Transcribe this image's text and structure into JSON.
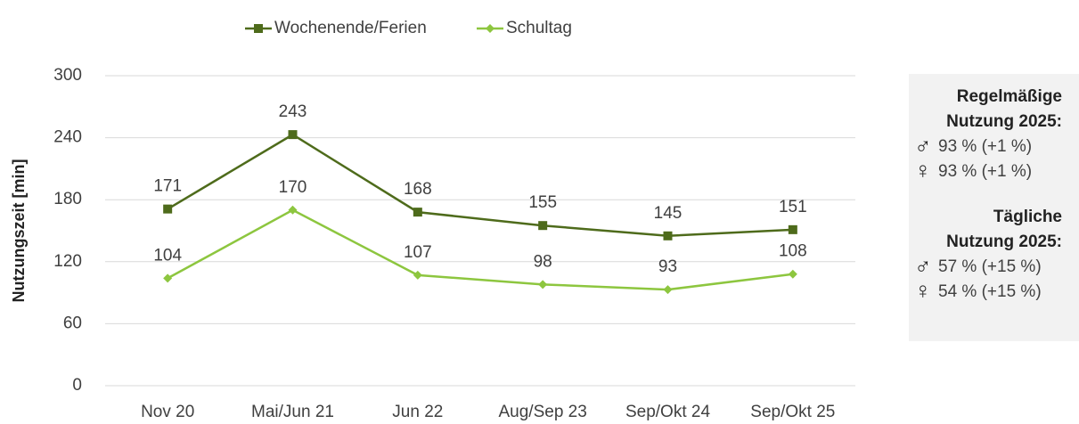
{
  "chart_data": {
    "type": "line",
    "y_label": "Nutzungszeit [min]",
    "categories": [
      "Nov 20",
      "Mai/Jun 21",
      "Jun 22",
      "Aug/Sep 23",
      "Sep/Okt 24",
      "Sep/Okt 25"
    ],
    "series": [
      {
        "name": "Wochenende/Ferien",
        "color": "#4e6b1b",
        "marker": "square",
        "values": [
          171,
          243,
          168,
          155,
          145,
          151
        ]
      },
      {
        "name": "Schultag",
        "color": "#8dc63f",
        "marker": "diamond",
        "values": [
          104,
          170,
          107,
          98,
          93,
          108
        ]
      }
    ],
    "ylim": [
      0,
      300
    ],
    "yticks": [
      0,
      60,
      120,
      180,
      240,
      300
    ],
    "grid": true,
    "legend": "top"
  },
  "info_box": {
    "sections": [
      {
        "title_lines": [
          "Regelmäßige",
          "Nutzung 2025:"
        ],
        "rows": [
          {
            "symbol": "♂",
            "text": "93 % (+1 %)"
          },
          {
            "symbol": "♀",
            "text": "93 % (+1 %)"
          }
        ]
      },
      {
        "title_lines": [
          "Tägliche",
          "Nutzung 2025:"
        ],
        "rows": [
          {
            "symbol": "♂",
            "text": "57 % (+15 %)"
          },
          {
            "symbol": "♀",
            "text": "54 % (+15 %)"
          }
        ]
      }
    ]
  }
}
